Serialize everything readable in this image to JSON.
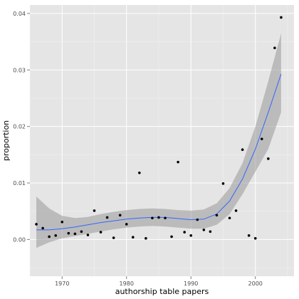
{
  "chart_data": {
    "type": "scatter",
    "xlabel": "authorship table papers",
    "ylabel": "proportion",
    "xlim": [
      1965,
      2006
    ],
    "ylim": [
      -0.0065,
      0.0415
    ],
    "x_ticks": [
      1970,
      1980,
      1990,
      2000
    ],
    "x_tick_labels": [
      "1970",
      "1980",
      "1990",
      "2000"
    ],
    "y_ticks": [
      0.0,
      0.01,
      0.02,
      0.03,
      0.04
    ],
    "y_tick_labels": [
      "0.00",
      "0.01",
      "0.02",
      "0.03",
      "0.04"
    ],
    "grid": true,
    "colors": {
      "panel": "#e5e5e5",
      "grid": "#ffffff",
      "points": "#000000",
      "smooth_line": "#3366ff",
      "confidence_band": "#999999"
    },
    "points": [
      {
        "x": 1966,
        "y": 0.0027
      },
      {
        "x": 1967,
        "y": 0.002
      },
      {
        "x": 1968,
        "y": 0.0005
      },
      {
        "x": 1969,
        "y": 0.0007
      },
      {
        "x": 1970,
        "y": 0.0031
      },
      {
        "x": 1971,
        "y": 0.0011
      },
      {
        "x": 1972,
        "y": 0.001
      },
      {
        "x": 1973,
        "y": 0.0014
      },
      {
        "x": 1974,
        "y": 0.0008
      },
      {
        "x": 1975,
        "y": 0.0051
      },
      {
        "x": 1976,
        "y": 0.0013
      },
      {
        "x": 1977,
        "y": 0.0039
      },
      {
        "x": 1978,
        "y": 0.0003
      },
      {
        "x": 1979,
        "y": 0.0043
      },
      {
        "x": 1980,
        "y": 0.0027
      },
      {
        "x": 1981,
        "y": 0.0004
      },
      {
        "x": 1982,
        "y": 0.0118
      },
      {
        "x": 1983,
        "y": 0.0002
      },
      {
        "x": 1984,
        "y": 0.0038
      },
      {
        "x": 1985,
        "y": 0.0039
      },
      {
        "x": 1986,
        "y": 0.0038
      },
      {
        "x": 1987,
        "y": 0.0005
      },
      {
        "x": 1988,
        "y": 0.0137
      },
      {
        "x": 1989,
        "y": 0.0013
      },
      {
        "x": 1990,
        "y": 0.0007
      },
      {
        "x": 1991,
        "y": 0.0035
      },
      {
        "x": 1992,
        "y": 0.0017
      },
      {
        "x": 1993,
        "y": 0.0014
      },
      {
        "x": 1994,
        "y": 0.0043
      },
      {
        "x": 1995,
        "y": 0.0099
      },
      {
        "x": 1996,
        "y": 0.0038
      },
      {
        "x": 1997,
        "y": 0.0051
      },
      {
        "x": 1998,
        "y": 0.0159
      },
      {
        "x": 1999,
        "y": 0.0007
      },
      {
        "x": 2000,
        "y": 0.0002
      },
      {
        "x": 2001,
        "y": 0.0178
      },
      {
        "x": 2002,
        "y": 0.0143
      },
      {
        "x": 2003,
        "y": 0.0339
      },
      {
        "x": 2004,
        "y": 0.0393
      }
    ],
    "smooth": [
      {
        "x": 1966,
        "y": 0.0017,
        "lo": -0.0015,
        "hi": 0.0076
      },
      {
        "x": 1968,
        "y": 0.0017,
        "lo": -0.0005,
        "hi": 0.0055
      },
      {
        "x": 1970,
        "y": 0.0019,
        "lo": 0.0002,
        "hi": 0.0042
      },
      {
        "x": 1972,
        "y": 0.0022,
        "lo": 0.0006,
        "hi": 0.0038
      },
      {
        "x": 1974,
        "y": 0.0026,
        "lo": 0.001,
        "hi": 0.004
      },
      {
        "x": 1976,
        "y": 0.003,
        "lo": 0.0014,
        "hi": 0.0045
      },
      {
        "x": 1978,
        "y": 0.0033,
        "lo": 0.0018,
        "hi": 0.0049
      },
      {
        "x": 1980,
        "y": 0.0036,
        "lo": 0.0021,
        "hi": 0.0052
      },
      {
        "x": 1982,
        "y": 0.0038,
        "lo": 0.0023,
        "hi": 0.0054
      },
      {
        "x": 1984,
        "y": 0.0039,
        "lo": 0.0024,
        "hi": 0.0055
      },
      {
        "x": 1986,
        "y": 0.0039,
        "lo": 0.0023,
        "hi": 0.0054
      },
      {
        "x": 1988,
        "y": 0.0037,
        "lo": 0.0021,
        "hi": 0.0052
      },
      {
        "x": 1990,
        "y": 0.0035,
        "lo": 0.0019,
        "hi": 0.0051
      },
      {
        "x": 1992,
        "y": 0.0036,
        "lo": 0.0019,
        "hi": 0.0053
      },
      {
        "x": 1994,
        "y": 0.0045,
        "lo": 0.0026,
        "hi": 0.0064
      },
      {
        "x": 1996,
        "y": 0.0068,
        "lo": 0.0045,
        "hi": 0.0091
      },
      {
        "x": 1998,
        "y": 0.0107,
        "lo": 0.008,
        "hi": 0.0135
      },
      {
        "x": 2000,
        "y": 0.016,
        "lo": 0.012,
        "hi": 0.02
      },
      {
        "x": 2002,
        "y": 0.0225,
        "lo": 0.016,
        "hi": 0.028
      },
      {
        "x": 2004,
        "y": 0.0293,
        "lo": 0.0225,
        "hi": 0.0365
      }
    ]
  }
}
